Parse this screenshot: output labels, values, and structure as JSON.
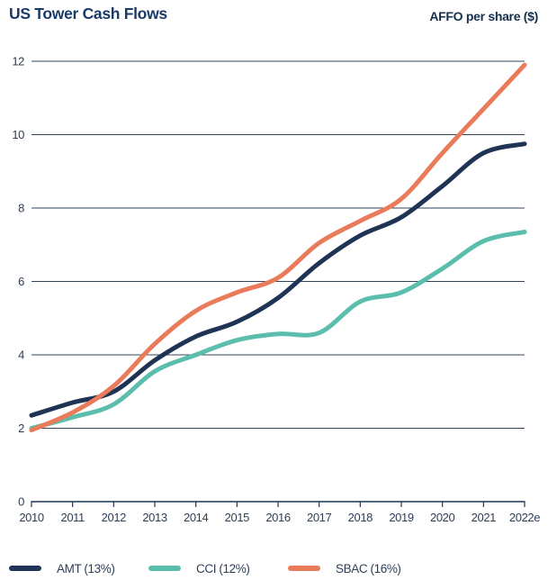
{
  "header": {
    "title": "US Tower Cash Flows",
    "unit_label": "AFFO per share ($)"
  },
  "chart_data": {
    "type": "line",
    "title": "US Tower Cash Flows",
    "ylabel": "AFFO per share ($)",
    "categories": [
      "2010",
      "2011",
      "2012",
      "2013",
      "2014",
      "2015",
      "2016",
      "2017",
      "2018",
      "2019",
      "2020",
      "2021",
      "2022e"
    ],
    "series": [
      {
        "name": "AMT (13%)",
        "color": "#1f3354",
        "values": [
          2.35,
          2.7,
          3.0,
          3.85,
          4.5,
          4.9,
          5.55,
          6.5,
          7.25,
          7.75,
          8.6,
          9.5,
          9.75
        ]
      },
      {
        "name": "CCI (12%)",
        "color": "#5bbead",
        "values": [
          2.0,
          2.3,
          2.65,
          3.55,
          4.0,
          4.4,
          4.57,
          4.6,
          5.45,
          5.7,
          6.35,
          7.1,
          7.35
        ]
      },
      {
        "name": "SBAC (16%)",
        "color": "#e97b5b",
        "values": [
          1.95,
          2.43,
          3.15,
          4.3,
          5.2,
          5.7,
          6.1,
          7.05,
          7.65,
          8.25,
          9.5,
          10.7,
          11.9
        ]
      }
    ],
    "ylim": [
      0,
      12
    ],
    "yticks": [
      0,
      2,
      4,
      6,
      8,
      10,
      12
    ],
    "grid": "horizontal",
    "legend_position": "bottom"
  },
  "legend": {
    "items": [
      {
        "label": "AMT (13%)",
        "color": "#1f3354"
      },
      {
        "label": "CCI (12%)",
        "color": "#5bbead"
      },
      {
        "label": "SBAC (16%)",
        "color": "#e97b5b"
      }
    ]
  },
  "colors": {
    "title": "#1a3a68",
    "axis_text": "#2d3e56",
    "gridline": "#32445c",
    "axis_line": "#1f3354",
    "background": "#ffffff"
  }
}
